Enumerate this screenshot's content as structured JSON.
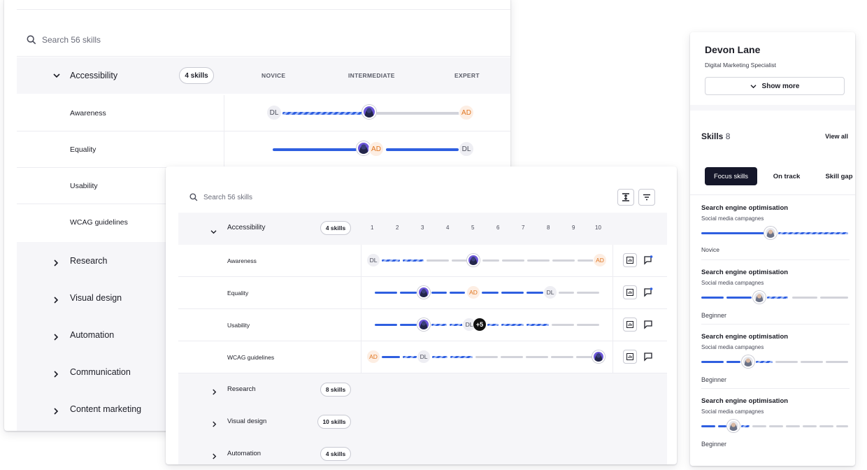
{
  "back": {
    "search_placeholder": "Search 56 skills",
    "group": {
      "name": "Accessibility",
      "count": "4 skills"
    },
    "levels": [
      "NOVICE",
      "INTERMEDIATE",
      "EXPERT"
    ],
    "skills": [
      "Awareness",
      "Equality",
      "Usability",
      "WCAG guidelines"
    ],
    "groups": [
      "Research",
      "Visual design",
      "Automation",
      "Communication",
      "Content marketing"
    ]
  },
  "front": {
    "search_placeholder": "Search 56 skills",
    "group": {
      "name": "Accessibility",
      "count": "4 skills"
    },
    "scale": [
      "1",
      "2",
      "3",
      "4",
      "5",
      "6",
      "7",
      "8",
      "9",
      "10"
    ],
    "skills": [
      "Awareness",
      "Equality",
      "Usability",
      "WCAG guidelines"
    ],
    "groups": [
      {
        "name": "Research",
        "count": "8 skills"
      },
      {
        "name": "Visual design",
        "count": "10 skills"
      },
      {
        "name": "Automation",
        "count": "4 skills"
      }
    ],
    "plus_badge": "+5"
  },
  "initials": {
    "dl": "DL",
    "ad": "AD"
  },
  "profile": {
    "name": "Devon Lane",
    "role": "Digital Marketing Specialist",
    "show_more": "Show more",
    "skills_title": "Skills",
    "skills_count": "8",
    "view_all": "View all",
    "tabs": [
      "Focus skills",
      "On track",
      "Skill gap"
    ],
    "items": [
      {
        "title": "Search engine optimisation",
        "sub": "Social media campagnes",
        "level": "Novice",
        "progress": 0.42
      },
      {
        "title": "Search engine optimisation",
        "sub": "Social media campagnes",
        "level": "Beginner",
        "progress": 0.38
      },
      {
        "title": "Search engine optimisation",
        "sub": "Social media campagnes",
        "level": "Beginner",
        "progress": 0.32
      },
      {
        "title": "Search engine optimisation",
        "sub": "Social media campagnes",
        "level": "Beginner",
        "progress": 0.22
      }
    ]
  },
  "colors": {
    "accent": "#2f5fe0",
    "dark_tab": "#15172a",
    "ad_orange": "#e0751f"
  }
}
